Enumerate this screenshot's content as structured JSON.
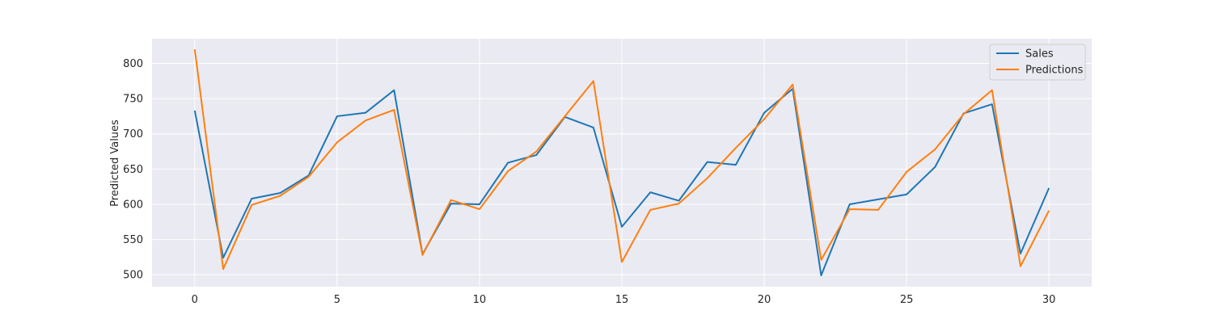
{
  "chart_data": {
    "type": "line",
    "title": "",
    "xlabel": "",
    "ylabel": "Predicted Values",
    "xlim": [
      -1.5,
      31.5
    ],
    "ylim": [
      483,
      835
    ],
    "x_ticks": [
      0,
      5,
      10,
      15,
      20,
      25,
      30
    ],
    "y_ticks": [
      500,
      550,
      600,
      650,
      700,
      750,
      800
    ],
    "grid": true,
    "legend_position": "upper right",
    "x": [
      0,
      1,
      2,
      3,
      4,
      5,
      6,
      7,
      8,
      9,
      10,
      11,
      12,
      13,
      14,
      15,
      16,
      17,
      18,
      19,
      20,
      21,
      22,
      23,
      24,
      25,
      26,
      27,
      28,
      29,
      30
    ],
    "series": [
      {
        "name": "Sales",
        "color": "#1f77b4",
        "values": [
          733,
          524,
          608,
          616,
          641,
          725,
          730,
          762,
          529,
          601,
          600,
          659,
          670,
          724,
          709,
          568,
          617,
          605,
          660,
          656,
          730,
          764,
          499,
          600,
          607,
          614,
          653,
          729,
          742,
          530,
          623
        ]
      },
      {
        "name": "Predictions",
        "color": "#ff7f0e",
        "values": [
          820,
          508,
          599,
          612,
          639,
          688,
          719,
          734,
          528,
          606,
          593,
          647,
          675,
          725,
          775,
          518,
          592,
          601,
          637,
          680,
          721,
          770,
          521,
          593,
          592,
          646,
          678,
          728,
          762,
          512,
          591
        ]
      }
    ],
    "style": {
      "plot_background": "#eaeaf2",
      "grid_color": "#ffffff"
    }
  }
}
